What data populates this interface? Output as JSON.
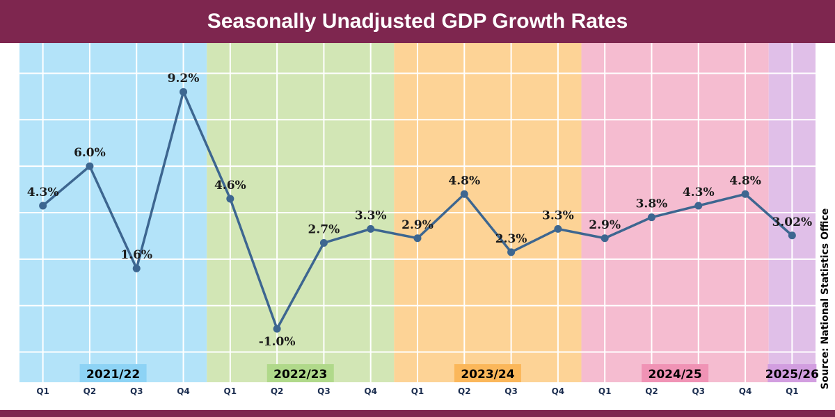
{
  "chart_data": {
    "type": "line",
    "title": "Seasonally Unadjusted GDP Growth Rates",
    "x": [
      "Q1",
      "Q2",
      "Q3",
      "Q4",
      "Q1",
      "Q2",
      "Q3",
      "Q4",
      "Q1",
      "Q2",
      "Q3",
      "Q4",
      "Q1",
      "Q2",
      "Q3",
      "Q4",
      "Q1"
    ],
    "values": [
      4.3,
      6.0,
      1.6,
      9.2,
      4.6,
      -1.0,
      2.7,
      3.3,
      2.9,
      4.8,
      2.3,
      3.3,
      2.9,
      3.8,
      4.3,
      4.8,
      3.02
    ],
    "data_labels": [
      "4.3%",
      "6.0%",
      "1.6%",
      "9.2%",
      "4.6%",
      "-1.0%",
      "2.7%",
      "3.3%",
      "2.9%",
      "4.8%",
      "2.3%",
      "3.3%",
      "2.9%",
      "3.8%",
      "4.3%",
      "4.8%",
      "3.02%"
    ],
    "periods": [
      {
        "label": "2021/22",
        "quarters": 4,
        "color": "#b3e3f9",
        "label_color": "#8dd3f5"
      },
      {
        "label": "2022/23",
        "quarters": 4,
        "color": "#d2e6b5",
        "label_color": "#b0d98a"
      },
      {
        "label": "2023/24",
        "quarters": 4,
        "color": "#fdd396",
        "label_color": "#fbb75a"
      },
      {
        "label": "2024/25",
        "quarters": 4,
        "color": "#f5bcd0",
        "label_color": "#f093b5"
      },
      {
        "label": "2025/26",
        "quarters": 1,
        "color": "#e0bfe8",
        "label_color": "#d29ee0"
      }
    ],
    "ylim": [
      -3.3,
      11.3
    ],
    "grid": true,
    "line_color": "#3d6690",
    "source": "Source: National Statistics Office"
  }
}
